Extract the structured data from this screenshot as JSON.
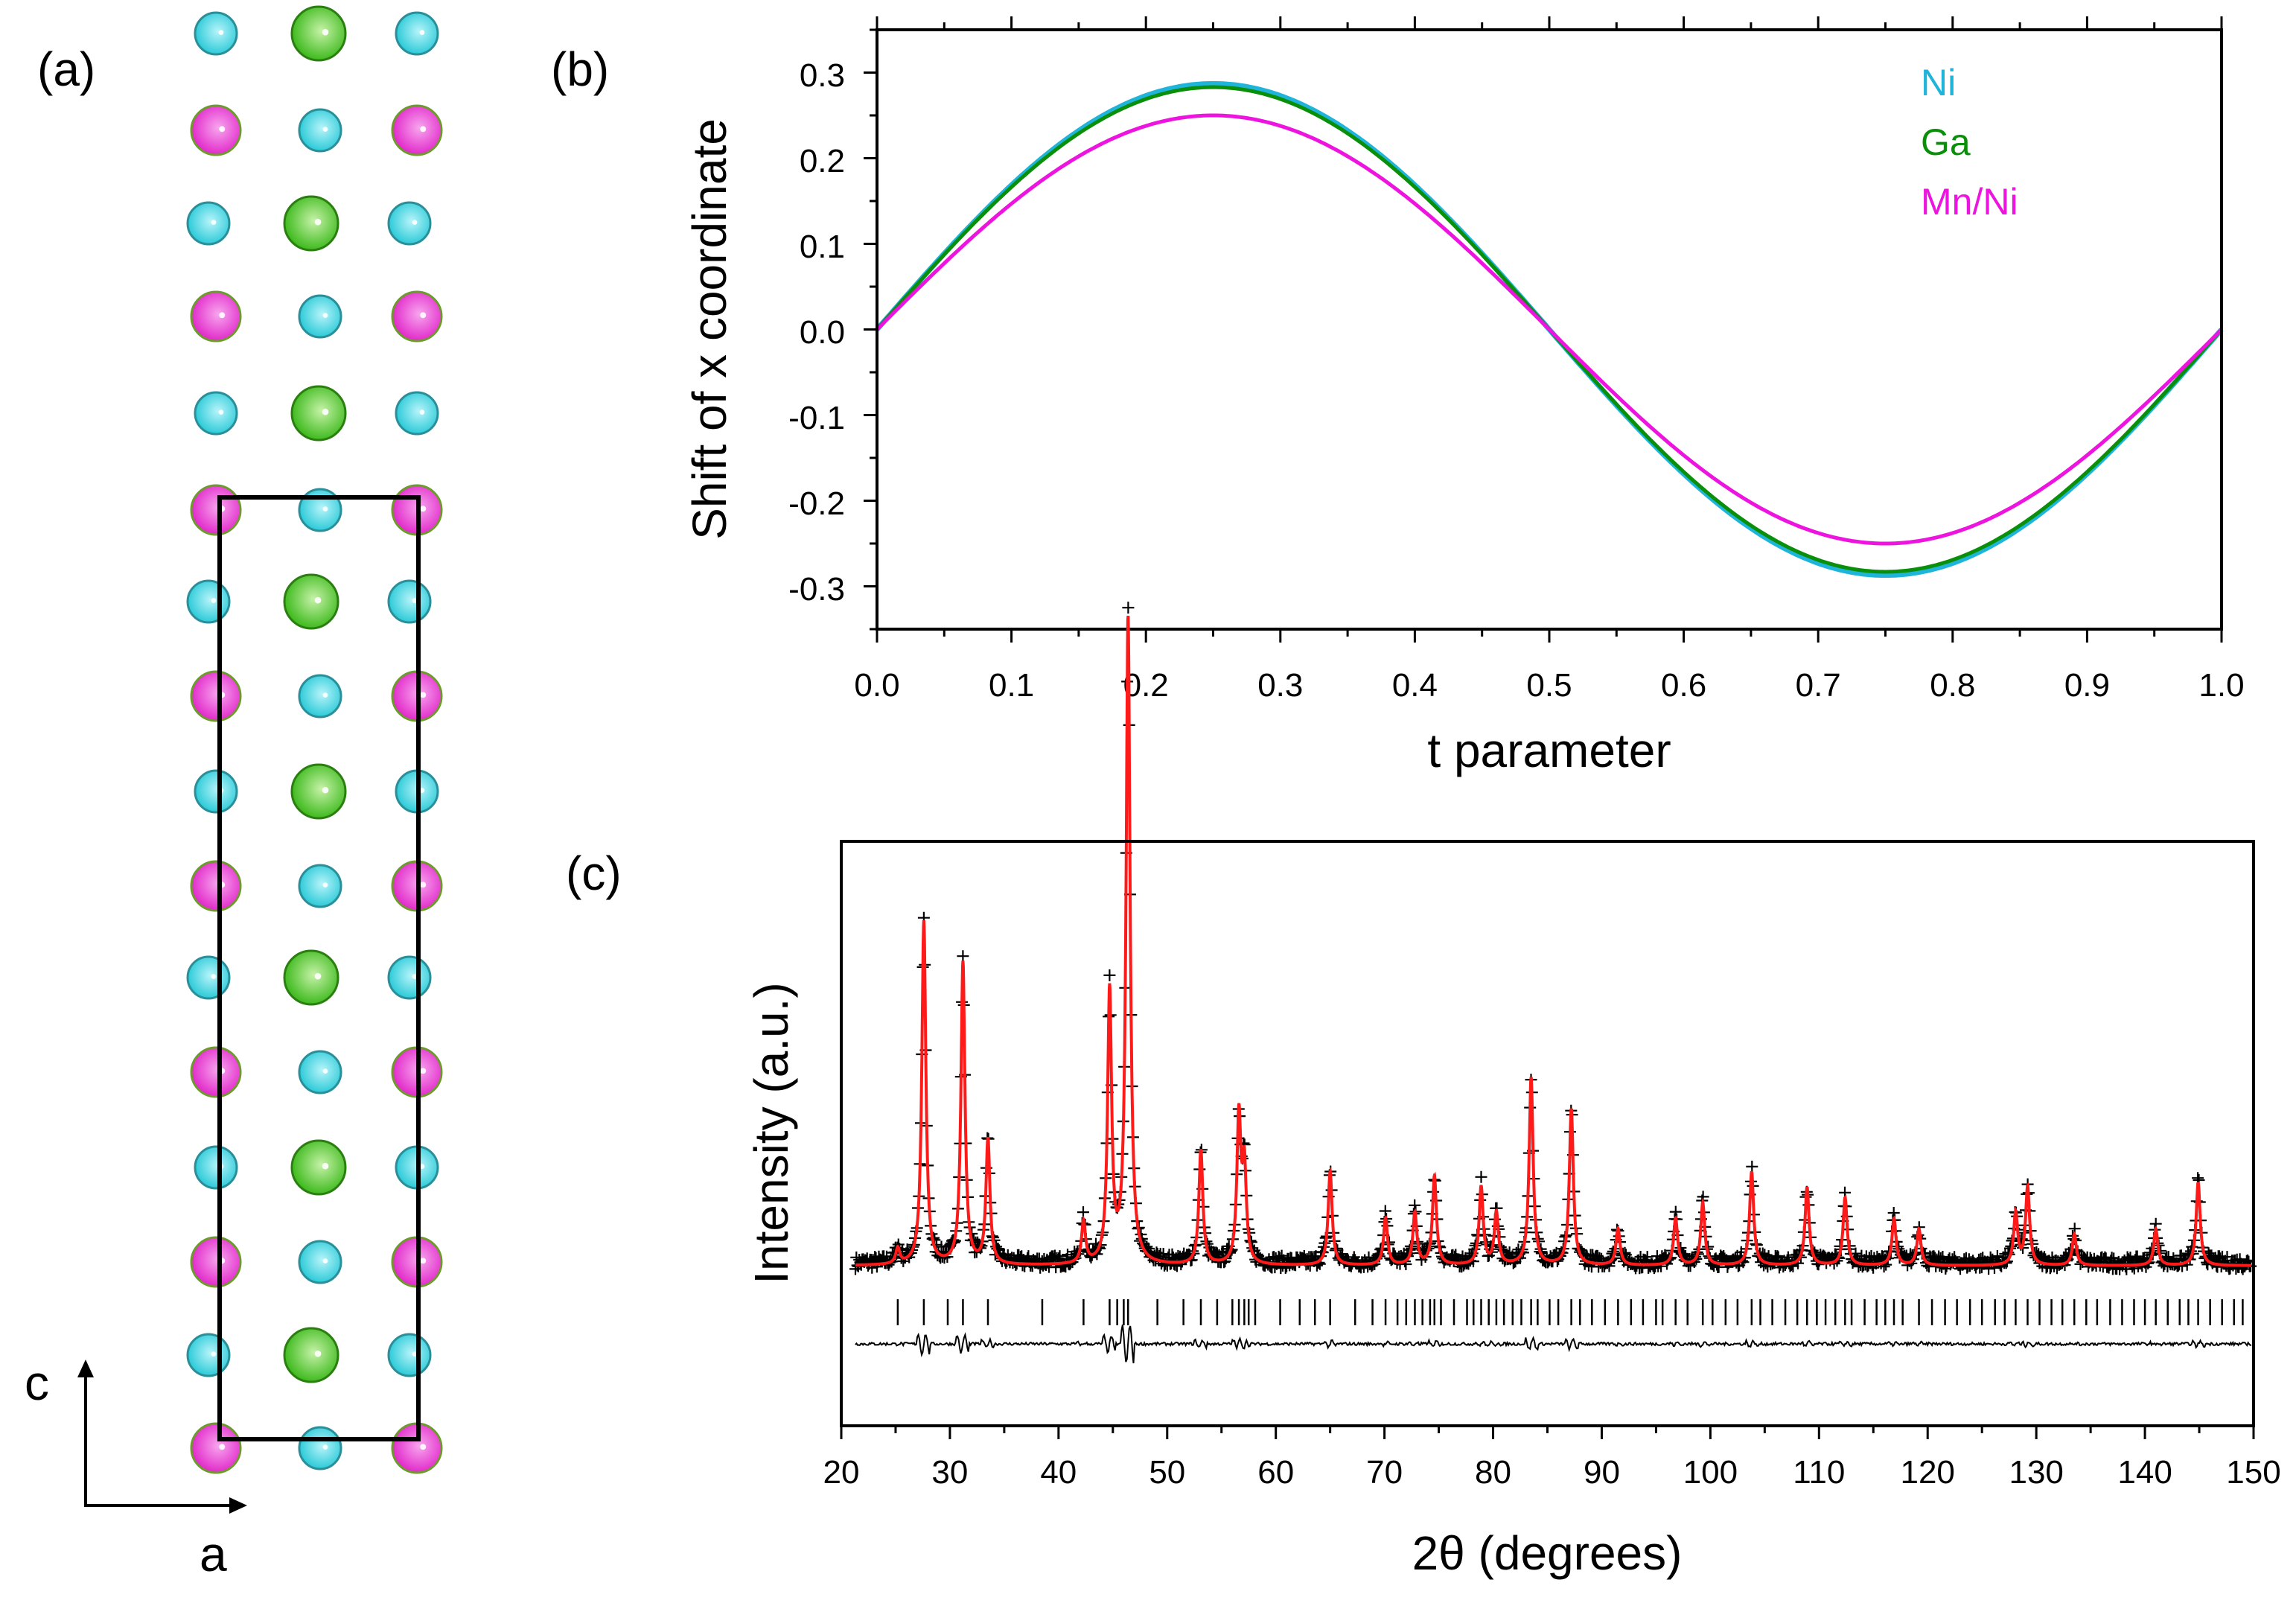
{
  "panels": {
    "a": {
      "label": "(a)",
      "axis_c": "c",
      "axis_a": "a",
      "atom_colors": {
        "ni": "#20c7d5",
        "ga": "#33b512",
        "mnni": "#e01fc7"
      }
    },
    "b": {
      "label": "(b)"
    },
    "c": {
      "label": "(c)"
    }
  },
  "chart_data": [
    {
      "id": "b",
      "type": "line",
      "title": "",
      "xlabel": "t parameter",
      "ylabel": "Shift of x coordinate",
      "xlim": [
        0.0,
        1.0
      ],
      "ylim": [
        -0.35,
        0.35
      ],
      "x_ticks": [
        "0.0",
        "0.1",
        "0.2",
        "0.3",
        "0.4",
        "0.5",
        "0.6",
        "0.7",
        "0.8",
        "0.9",
        "1.0"
      ],
      "y_ticks": [
        "0.3",
        "0.2",
        "0.1",
        "0.0",
        "-0.1",
        "-0.2",
        "-0.3"
      ],
      "legend_position": "top-right",
      "series": [
        {
          "name": "Ni",
          "function": "A*sin(2*pi*t)",
          "amplitude": 0.287,
          "color": "#1fb4d9"
        },
        {
          "name": "Ga",
          "function": "A*sin(2*pi*t)",
          "amplitude": 0.283,
          "color": "#0a8f0a"
        },
        {
          "name": "Mn/Ni",
          "function": "A*sin(2*pi*t)",
          "amplitude": 0.25,
          "color": "#ee14e0"
        }
      ]
    },
    {
      "id": "c",
      "type": "line",
      "title": "",
      "xlabel": "2θ (degrees)",
      "ylabel": "Intensity (a.u.)",
      "xlim": [
        20,
        150
      ],
      "x_ticks": [
        "20",
        "30",
        "40",
        "50",
        "60",
        "70",
        "80",
        "90",
        "100",
        "110",
        "120",
        "130",
        "140",
        "150"
      ],
      "baseline": 1.0,
      "peaks_2theta": [
        25.2,
        27.6,
        31.2,
        33.5,
        42.3,
        44.7,
        46.4,
        53.1,
        56.6,
        57.1,
        65.0,
        70.1,
        72.8,
        74.6,
        78.9,
        80.3,
        83.5,
        87.2,
        91.5,
        96.8,
        99.3,
        103.8,
        108.9,
        112.4,
        116.9,
        119.2,
        128.1,
        129.2,
        133.5,
        141.0,
        144.9
      ],
      "peak_heights": [
        0.15,
        3.3,
        2.9,
        1.2,
        0.4,
        2.6,
        6.2,
        1.1,
        1.4,
        0.9,
        0.9,
        0.45,
        0.5,
        0.85,
        0.75,
        0.5,
        1.8,
        1.5,
        0.35,
        0.45,
        0.6,
        0.9,
        0.75,
        0.65,
        0.45,
        0.35,
        0.5,
        0.75,
        0.3,
        0.35,
        0.8
      ],
      "reflection_ticks_2theta": [
        25.2,
        27.6,
        29.8,
        31.2,
        33.5,
        38.5,
        42.3,
        44.7,
        45.4,
        46.0,
        46.4,
        49.1,
        51.5,
        53.1,
        54.6,
        56.0,
        56.6,
        57.1,
        57.5,
        58.1,
        60.4,
        62.2,
        63.6,
        65.0,
        67.3,
        68.9,
        70.1,
        71.2,
        72.0,
        72.8,
        73.5,
        74.2,
        74.6,
        75.2,
        76.4,
        77.6,
        78.2,
        78.9,
        79.6,
        80.3,
        81.0,
        81.8,
        82.6,
        83.5,
        84.1,
        85.2,
        86.0,
        87.2,
        88.0,
        89.1,
        90.3,
        91.5,
        92.7,
        93.8,
        95.0,
        95.6,
        96.8,
        97.9,
        99.3,
        100.2,
        101.4,
        102.5,
        103.8,
        104.6,
        105.7,
        106.9,
        108.0,
        108.9,
        109.8,
        110.6,
        111.5,
        112.4,
        113.0,
        114.2,
        115.3,
        116.1,
        116.9,
        117.7,
        119.2,
        120.4,
        121.6,
        122.7,
        123.9,
        125.0,
        126.2,
        127.1,
        128.1,
        129.2,
        130.3,
        131.4,
        132.4,
        133.5,
        134.6,
        135.6,
        136.8,
        137.9,
        139.0,
        140.0,
        141.0,
        142.1,
        143.2,
        144.0,
        144.9,
        146.0,
        147.1,
        148.2,
        149.0
      ],
      "series": [
        {
          "name": "observed",
          "marker": "+",
          "color": "#000000"
        },
        {
          "name": "calculated",
          "color": "#ff1a1a"
        },
        {
          "name": "difference",
          "color": "#000000"
        }
      ]
    }
  ]
}
